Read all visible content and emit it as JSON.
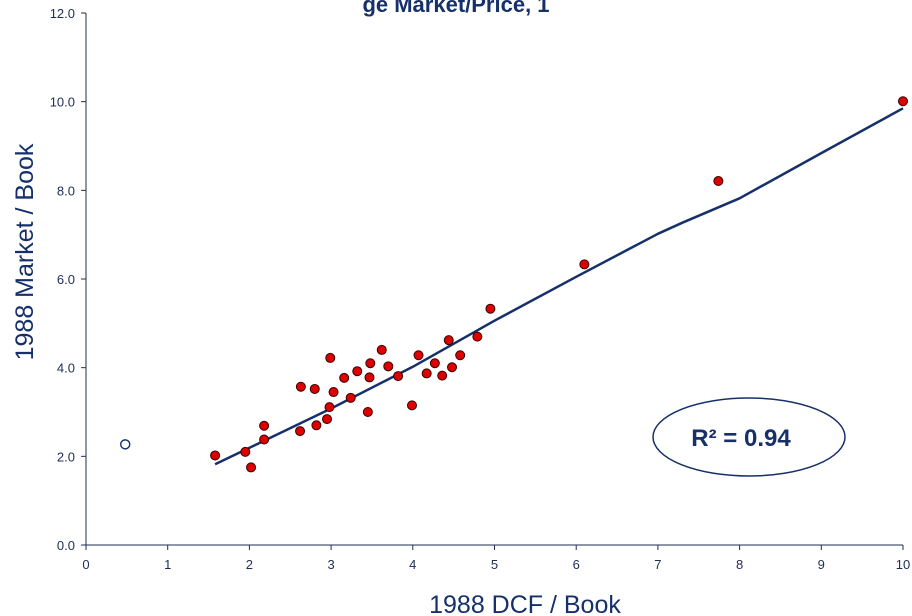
{
  "chart_data": {
    "type": "scatter",
    "title": "ge Market/Price, 1",
    "xlabel": "1988 DCF / Book",
    "ylabel": "1988 Market / Book",
    "xlim": [
      0,
      10
    ],
    "ylim": [
      0,
      12
    ],
    "x_ticks": [
      "0",
      "1",
      "2",
      "3",
      "4",
      "5",
      "6",
      "7",
      "8",
      "9",
      "10"
    ],
    "y_ticks": [
      "0.0",
      "2.0",
      "4.0",
      "6.0",
      "8.0",
      "10.0",
      "12.0"
    ],
    "grid": false,
    "colors": {
      "points": "#dd0000",
      "outlier": "#ffffff",
      "line": "#16306a",
      "axis": "#1f2d55"
    },
    "annotation": {
      "text": "R² = 0.94",
      "r2": 0.94
    },
    "series": [
      {
        "kind": "points",
        "x": [
          1.58,
          1.95,
          2.02,
          2.18,
          2.18,
          2.62,
          2.63,
          2.8,
          2.82,
          2.95,
          2.98,
          2.99,
          3.03,
          3.16,
          3.24,
          3.32,
          3.45,
          3.47,
          3.48,
          3.62,
          3.7,
          3.82,
          3.99,
          4.07,
          4.17,
          4.27,
          4.36,
          4.44,
          4.48,
          4.58,
          4.79,
          4.95,
          6.1,
          7.74,
          10.0
        ],
        "y": [
          2.02,
          2.1,
          1.75,
          2.38,
          2.69,
          2.57,
          3.57,
          3.52,
          2.7,
          2.84,
          3.11,
          4.22,
          3.45,
          3.77,
          3.32,
          3.92,
          3.0,
          3.78,
          4.1,
          4.4,
          4.03,
          3.81,
          3.15,
          4.28,
          3.87,
          4.1,
          3.82,
          4.62,
          4.01,
          4.28,
          4.7,
          5.33,
          6.33,
          8.21,
          10.01
        ]
      },
      {
        "kind": "outlier",
        "x": [
          0.48
        ],
        "y": [
          2.27
        ]
      },
      {
        "kind": "line",
        "x": [
          1.58,
          3.0,
          4.0,
          5.0,
          6.0,
          7.0,
          7.3,
          8.0,
          9.0,
          10.0
        ],
        "y": [
          1.82,
          3.08,
          4.02,
          5.06,
          6.05,
          7.02,
          7.27,
          7.82,
          8.84,
          9.85
        ]
      }
    ]
  }
}
